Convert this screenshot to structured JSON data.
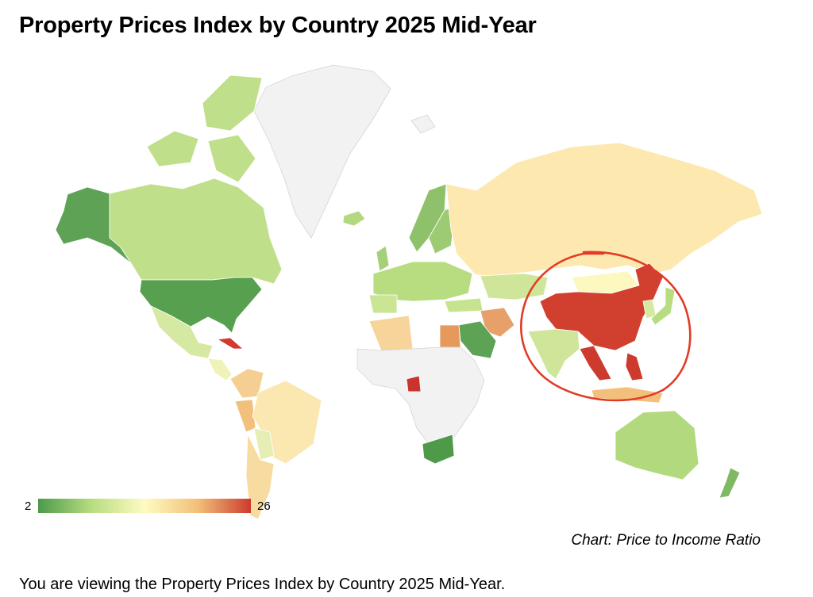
{
  "title": "Property Prices Index by Country 2025 Mid-Year",
  "legend": {
    "min": "2",
    "max": "26",
    "colors": [
      "#4c9a4a",
      "#b8dc80",
      "#fefbc2",
      "#f2c07a",
      "#cc3b2e"
    ]
  },
  "caption": "Chart: Price to Income Ratio",
  "footer": "You are viewing the Property Prices Index by Country 2025 Mid-Year.",
  "annotation": {
    "shape": "hand-drawn circle",
    "color": "#e23b26",
    "highlights": "East and Southeast Asia"
  },
  "colors": {
    "no_data": "#f2f2f2",
    "alaska": "#5ea255",
    "canada": "#bfdf8a",
    "usa": "#56a04f",
    "russia": "#fde8b0",
    "china": "#d13f2e",
    "mongolia": "#fdf7c0",
    "cuba": "#d23a30",
    "cameroon": "#c9342d",
    "egypt": "#e59a5c",
    "iran": "#e8a06a",
    "saudi": "#5ea255",
    "south_africa": "#4e9a48",
    "australia": "#b2d97e",
    "india": "#cfe69a",
    "algeria": "#f6d49a"
  }
}
